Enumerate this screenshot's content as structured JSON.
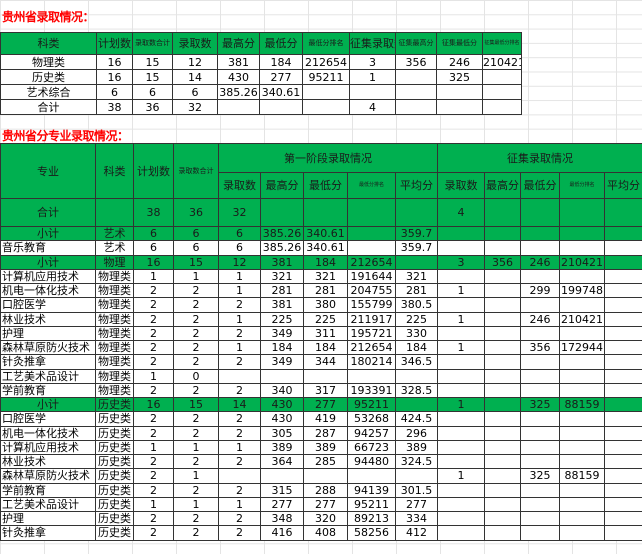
{
  "summary": {
    "title": "贵州省录取情况：",
    "headers": [
      "科类",
      "计划数",
      "录取数合计",
      "录取数",
      "最高分",
      "最低分",
      "最低分排名",
      "征集录取数",
      "征集最高分",
      "征集最低分",
      "征集最低分排名"
    ],
    "rows": [
      [
        "物理类",
        "16",
        "15",
        "12",
        "381",
        "184",
        "212654",
        "3",
        "356",
        "246",
        "210421"
      ],
      [
        "历史类",
        "16",
        "15",
        "14",
        "430",
        "277",
        "95211",
        "1",
        "",
        "325",
        ""
      ],
      [
        "艺术综合",
        "6",
        "6",
        "6",
        "385.26",
        "340.61",
        "",
        "",
        "",
        "",
        ""
      ],
      [
        "合计",
        "38",
        "36",
        "32",
        "",
        "",
        "",
        "4",
        "",
        "",
        ""
      ]
    ]
  },
  "detail": {
    "title": "贵州省分专业录取情况：",
    "headers": {
      "major": "专业",
      "category": "科类",
      "plan": "计划数",
      "admitted_total": "录取数合计",
      "phase1": "第一阶段录取情况",
      "supplement": "征集录取情况",
      "sub": [
        "录取数",
        "最高分",
        "最低分",
        "最低分排名",
        "平均分",
        "录取数",
        "最高分",
        "最低分",
        "最低分排名",
        "平均分"
      ]
    },
    "total": [
      "合计",
      "",
      "38",
      "36",
      "32",
      "",
      "",
      "",
      "",
      "",
      "4",
      "",
      "",
      "",
      ""
    ],
    "rows": [
      {
        "type": "sub",
        "cells": [
          "小计",
          "艺术",
          "6",
          "6",
          "6",
          "385.26",
          "340.61",
          "",
          "359.7",
          "",
          "",
          "",
          "",
          ""
        ]
      },
      {
        "type": "row",
        "cells": [
          "音乐教育",
          "艺术",
          "6",
          "6",
          "6",
          "385.26",
          "340.61",
          "",
          "359.7",
          "",
          "",
          "",
          "",
          ""
        ]
      },
      {
        "type": "sub",
        "cells": [
          "小计",
          "物理",
          "16",
          "15",
          "12",
          "381",
          "184",
          "212654",
          "",
          "3",
          "356",
          "246",
          "210421",
          ""
        ]
      },
      {
        "type": "row",
        "cells": [
          "计算机应用技术",
          "物理类",
          "1",
          "1",
          "1",
          "321",
          "321",
          "191644",
          "321",
          "",
          "",
          "",
          "",
          ""
        ]
      },
      {
        "type": "row",
        "cells": [
          "机电一体化技术",
          "物理类",
          "2",
          "2",
          "1",
          "281",
          "281",
          "204755",
          "281",
          "1",
          "",
          "299",
          "199748",
          ""
        ]
      },
      {
        "type": "row",
        "cells": [
          "口腔医学",
          "物理类",
          "2",
          "2",
          "2",
          "381",
          "380",
          "155799",
          "380.5",
          "",
          "",
          "",
          "",
          ""
        ]
      },
      {
        "type": "row",
        "cells": [
          "林业技术",
          "物理类",
          "2",
          "2",
          "1",
          "225",
          "225",
          "211917",
          "225",
          "1",
          "",
          "246",
          "210421",
          ""
        ]
      },
      {
        "type": "row",
        "cells": [
          "护理",
          "物理类",
          "2",
          "2",
          "2",
          "349",
          "311",
          "195721",
          "330",
          "",
          "",
          "",
          "",
          ""
        ]
      },
      {
        "type": "row",
        "cells": [
          "森林草原防火技术",
          "物理类",
          "2",
          "2",
          "1",
          "184",
          "184",
          "212654",
          "184",
          "1",
          "",
          "356",
          "172944",
          ""
        ]
      },
      {
        "type": "row",
        "cells": [
          "针灸推拿",
          "物理类",
          "2",
          "2",
          "2",
          "349",
          "344",
          "180214",
          "346.5",
          "",
          "",
          "",
          "",
          ""
        ]
      },
      {
        "type": "row",
        "cells": [
          "工艺美术品设计",
          "物理类",
          "1",
          "0",
          "",
          "",
          "",
          "",
          "",
          "",
          "",
          "",
          "",
          ""
        ]
      },
      {
        "type": "row",
        "cells": [
          "学前教育",
          "物理类",
          "2",
          "2",
          "2",
          "340",
          "317",
          "193391",
          "328.5",
          "",
          "",
          "",
          "",
          ""
        ]
      },
      {
        "type": "sub",
        "cells": [
          "小计",
          "历史类",
          "16",
          "15",
          "14",
          "430",
          "277",
          "95211",
          "",
          "1",
          "",
          "325",
          "88159",
          ""
        ]
      },
      {
        "type": "row",
        "cells": [
          "口腔医学",
          "历史类",
          "2",
          "2",
          "2",
          "430",
          "419",
          "53268",
          "424.5",
          "",
          "",
          "",
          "",
          ""
        ]
      },
      {
        "type": "row",
        "cells": [
          "机电一体化技术",
          "历史类",
          "2",
          "2",
          "2",
          "305",
          "287",
          "94257",
          "296",
          "",
          "",
          "",
          "",
          ""
        ]
      },
      {
        "type": "row",
        "cells": [
          "计算机应用技术",
          "历史类",
          "1",
          "1",
          "1",
          "389",
          "389",
          "66723",
          "389",
          "",
          "",
          "",
          "",
          ""
        ]
      },
      {
        "type": "row",
        "cells": [
          "林业技术",
          "历史类",
          "2",
          "2",
          "2",
          "364",
          "285",
          "94480",
          "324.5",
          "",
          "",
          "",
          "",
          ""
        ]
      },
      {
        "type": "row",
        "cells": [
          "森林草原防火技术",
          "历史类",
          "2",
          "1",
          "",
          "",
          "",
          "",
          "",
          "1",
          "",
          "325",
          "88159",
          ""
        ]
      },
      {
        "type": "row",
        "cells": [
          "学前教育",
          "历史类",
          "2",
          "2",
          "2",
          "315",
          "288",
          "94139",
          "301.5",
          "",
          "",
          "",
          "",
          ""
        ]
      },
      {
        "type": "row",
        "cells": [
          "工艺美术品设计",
          "历史类",
          "1",
          "1",
          "1",
          "277",
          "277",
          "95211",
          "277",
          "",
          "",
          "",
          "",
          ""
        ]
      },
      {
        "type": "row",
        "cells": [
          "护理",
          "历史类",
          "2",
          "2",
          "2",
          "348",
          "320",
          "89213",
          "334",
          "",
          "",
          "",
          "",
          ""
        ]
      },
      {
        "type": "row",
        "cells": [
          "针灸推拿",
          "历史类",
          "2",
          "2",
          "2",
          "416",
          "408",
          "58256",
          "412",
          "",
          "",
          "",
          "",
          ""
        ]
      }
    ]
  },
  "colors": {
    "header_green": "#00b050",
    "title_red": "#ff0000"
  }
}
